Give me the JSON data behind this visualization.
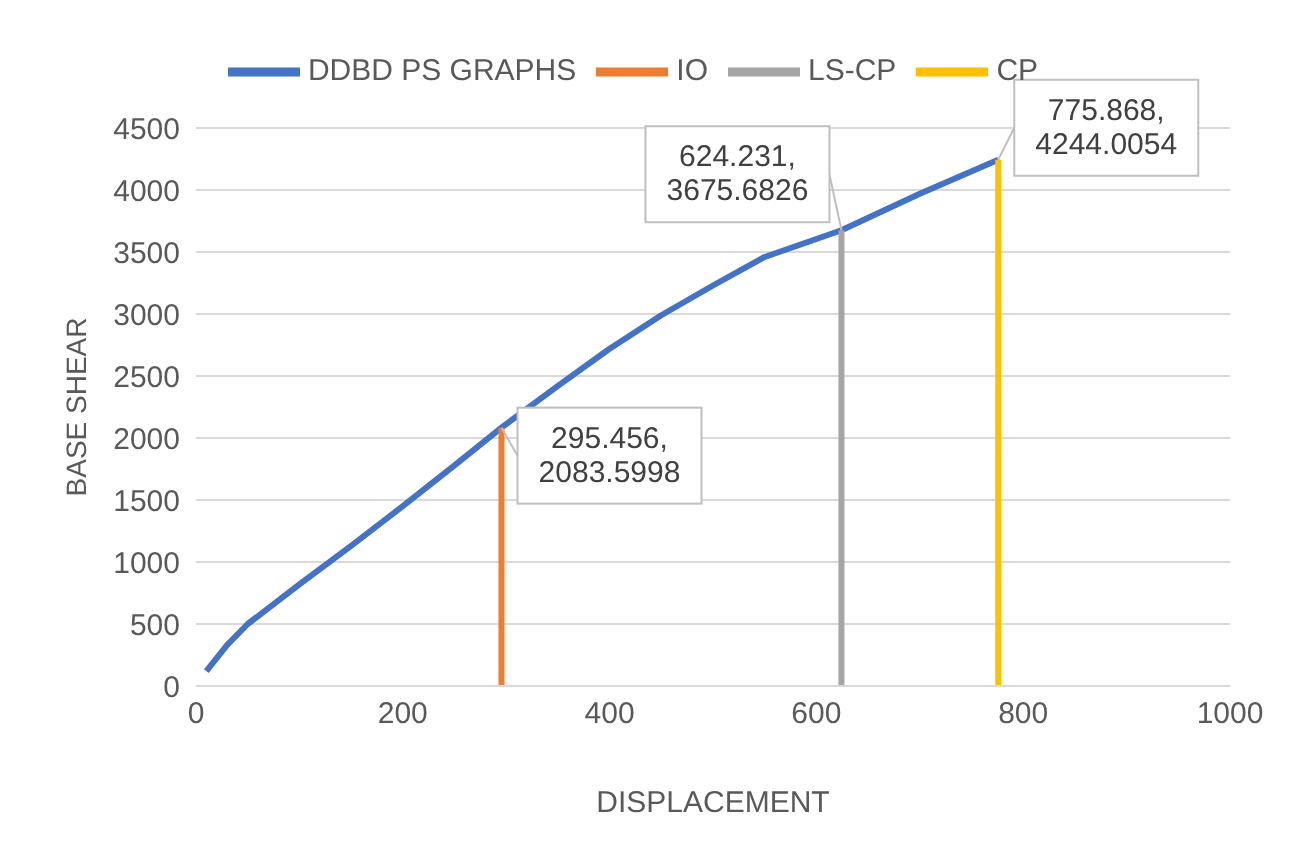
{
  "chart_data": {
    "type": "line",
    "xlabel": "DISPLACEMENT",
    "ylabel": "BASE SHEAR",
    "x": [
      10,
      30,
      50,
      100,
      150,
      200,
      250,
      295.456,
      350,
      400,
      450,
      500,
      550,
      624.231,
      700,
      775.868
    ],
    "series": [
      {
        "name": "DDBD PS GRAPHS",
        "color": "#4472c4",
        "values": [
          120,
          330,
          500,
          820,
          1130,
          1450,
          1780,
          2083.5998,
          2420,
          2720,
          2990,
          3230,
          3460,
          3675.6826,
          3970,
          4244.0054
        ]
      },
      {
        "name": "IO",
        "color": "#ed7d31",
        "x": [
          295.456,
          295.456
        ],
        "values": [
          0,
          2083.5998
        ]
      },
      {
        "name": "LS-CP",
        "color": "#a5a5a5",
        "x": [
          624.231,
          624.231
        ],
        "values": [
          0,
          3675.6826
        ]
      },
      {
        "name": "CP",
        "color": "#ffc000",
        "x": [
          775.868,
          775.868
        ],
        "values": [
          0,
          4244.0054
        ]
      }
    ],
    "xlim": [
      0,
      1000
    ],
    "xticks": [
      0,
      200,
      400,
      600,
      800,
      1000
    ],
    "ylim": [
      0,
      4500
    ],
    "yticks": [
      0,
      500,
      1000,
      1500,
      2000,
      2500,
      3000,
      3500,
      4000,
      4500
    ],
    "grid": "y",
    "legend": "top",
    "marker": "none",
    "line_style": "solid",
    "annotations": [
      {
        "text": "295.456, 2083.5998",
        "x": 295.456,
        "y": 2083.5998
      },
      {
        "text": "624.231, 3675.6826",
        "x": 624.231,
        "y": 3675.6826
      },
      {
        "text": "775.868, 4244.0054",
        "x": 775.868,
        "y": 4244.0054
      }
    ]
  }
}
